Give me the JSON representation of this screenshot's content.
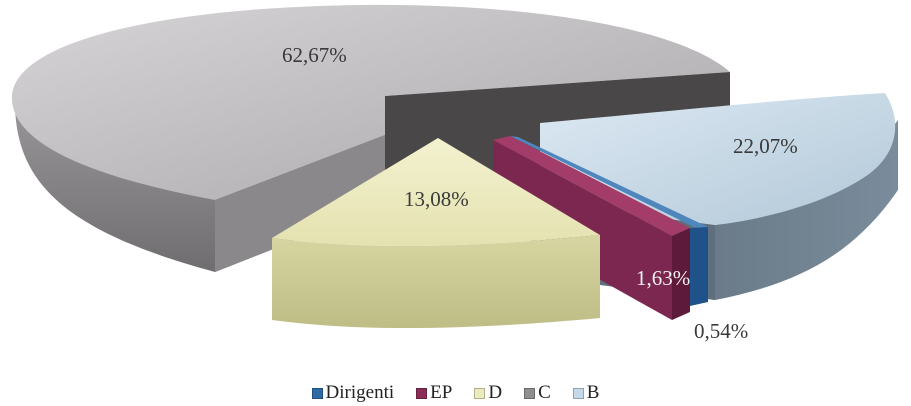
{
  "chart_data": {
    "type": "pie",
    "style": "3d-exploded",
    "categories": [
      "Dirigenti",
      "EP",
      "D",
      "C",
      "B"
    ],
    "values": [
      0.54,
      1.63,
      13.08,
      62.67,
      22.07
    ],
    "data_labels": [
      "0,54%",
      "1,63%",
      "13,08%",
      "62,67%",
      "22,07%"
    ],
    "colors": {
      "Dirigenti": "#2e6aa6",
      "EP": "#8a2c55",
      "D": "#ecebbd",
      "C": "#bdbbbd",
      "B": "#c6d9e8"
    },
    "legend_position": "bottom"
  }
}
